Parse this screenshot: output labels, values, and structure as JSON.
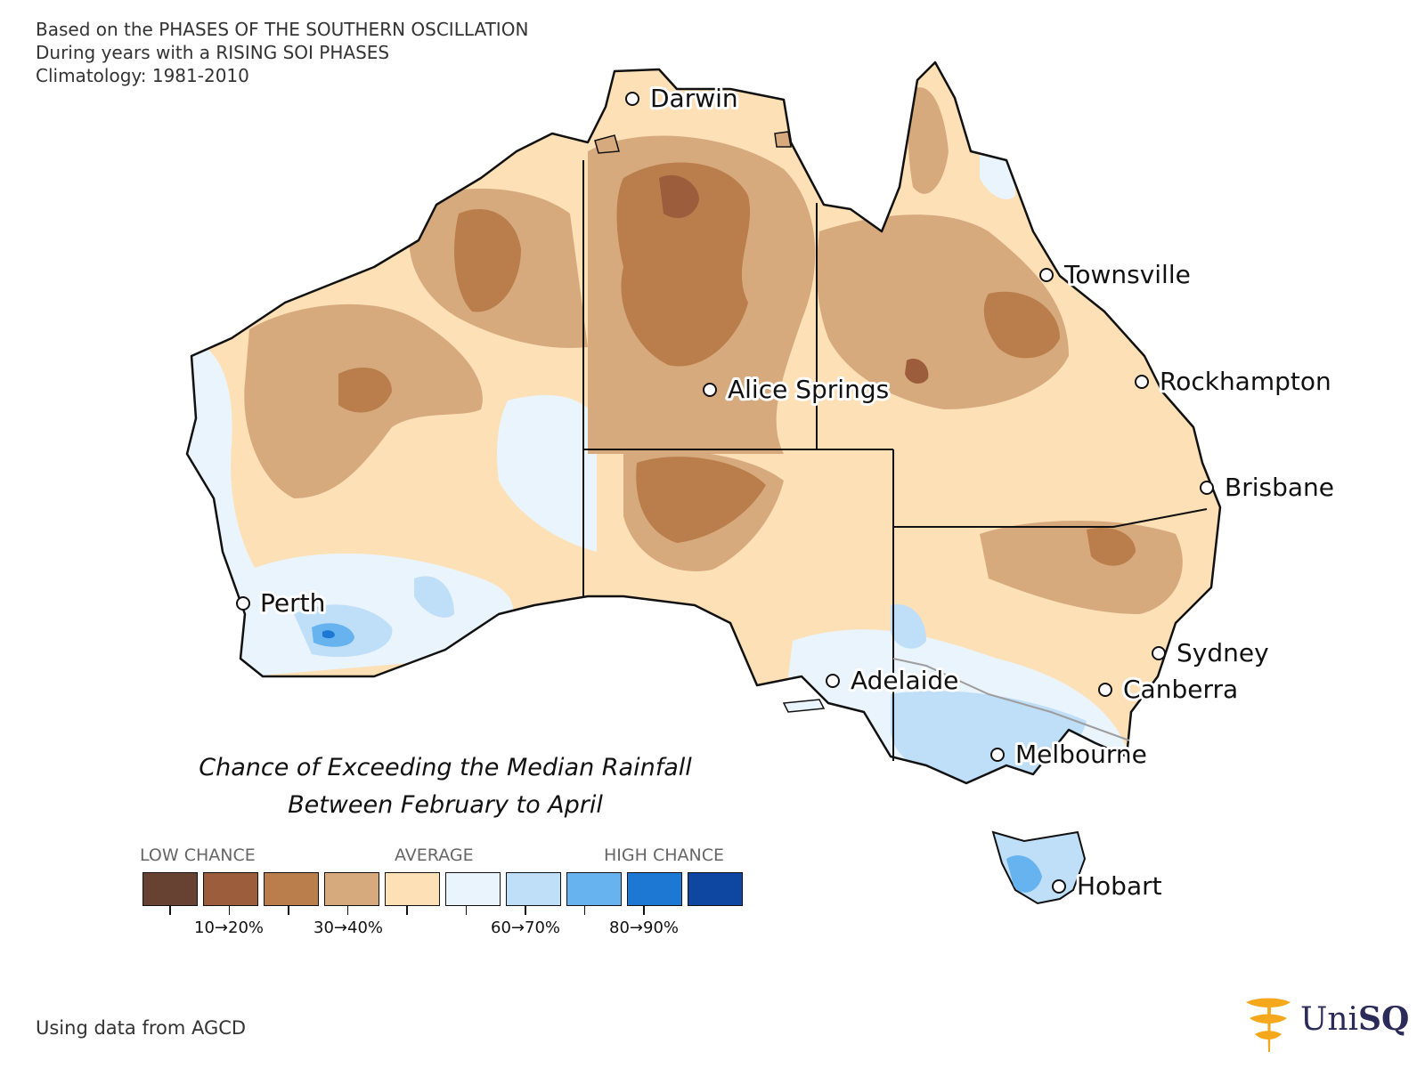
{
  "header": {
    "line1": "Based on the PHASES OF THE SOUTHERN OSCILLATION",
    "line2": "During years with a RISING SOI PHASES",
    "line3": "Climatology: 1981-2010"
  },
  "map_title": {
    "line1": "Chance of Exceeding the Median Rainfall",
    "line2": "Between February to April"
  },
  "cities": {
    "darwin": "Darwin",
    "townsville": "Townsville",
    "rockhampton": "Rockhampton",
    "brisbane": "Brisbane",
    "alice_springs": "Alice Springs",
    "perth": "Perth",
    "adelaide": "Adelaide",
    "sydney": "Sydney",
    "canberra": "Canberra",
    "melbourne": "Melbourne",
    "hobart": "Hobart"
  },
  "legend": {
    "low": "LOW CHANCE",
    "average": "AVERAGE",
    "high": "HIGH CHANCE",
    "tick_10_20": "10→20%",
    "tick_30_40": "30→40%",
    "tick_60_70": "60→70%",
    "tick_80_90": "80→90%",
    "colors": [
      "#674131",
      "#9c5d3c",
      "#b97e4c",
      "#d7aa7e",
      "#fde0b6",
      "#eaf4fd",
      "#bfdef8",
      "#66b3f0",
      "#1d78d4",
      "#0d47a1"
    ]
  },
  "footer": {
    "source": "Using data from AGCD"
  },
  "logo": {
    "name_part1": "Uni",
    "name_part2": "SQ",
    "accent_color": "#f6a81c"
  }
}
